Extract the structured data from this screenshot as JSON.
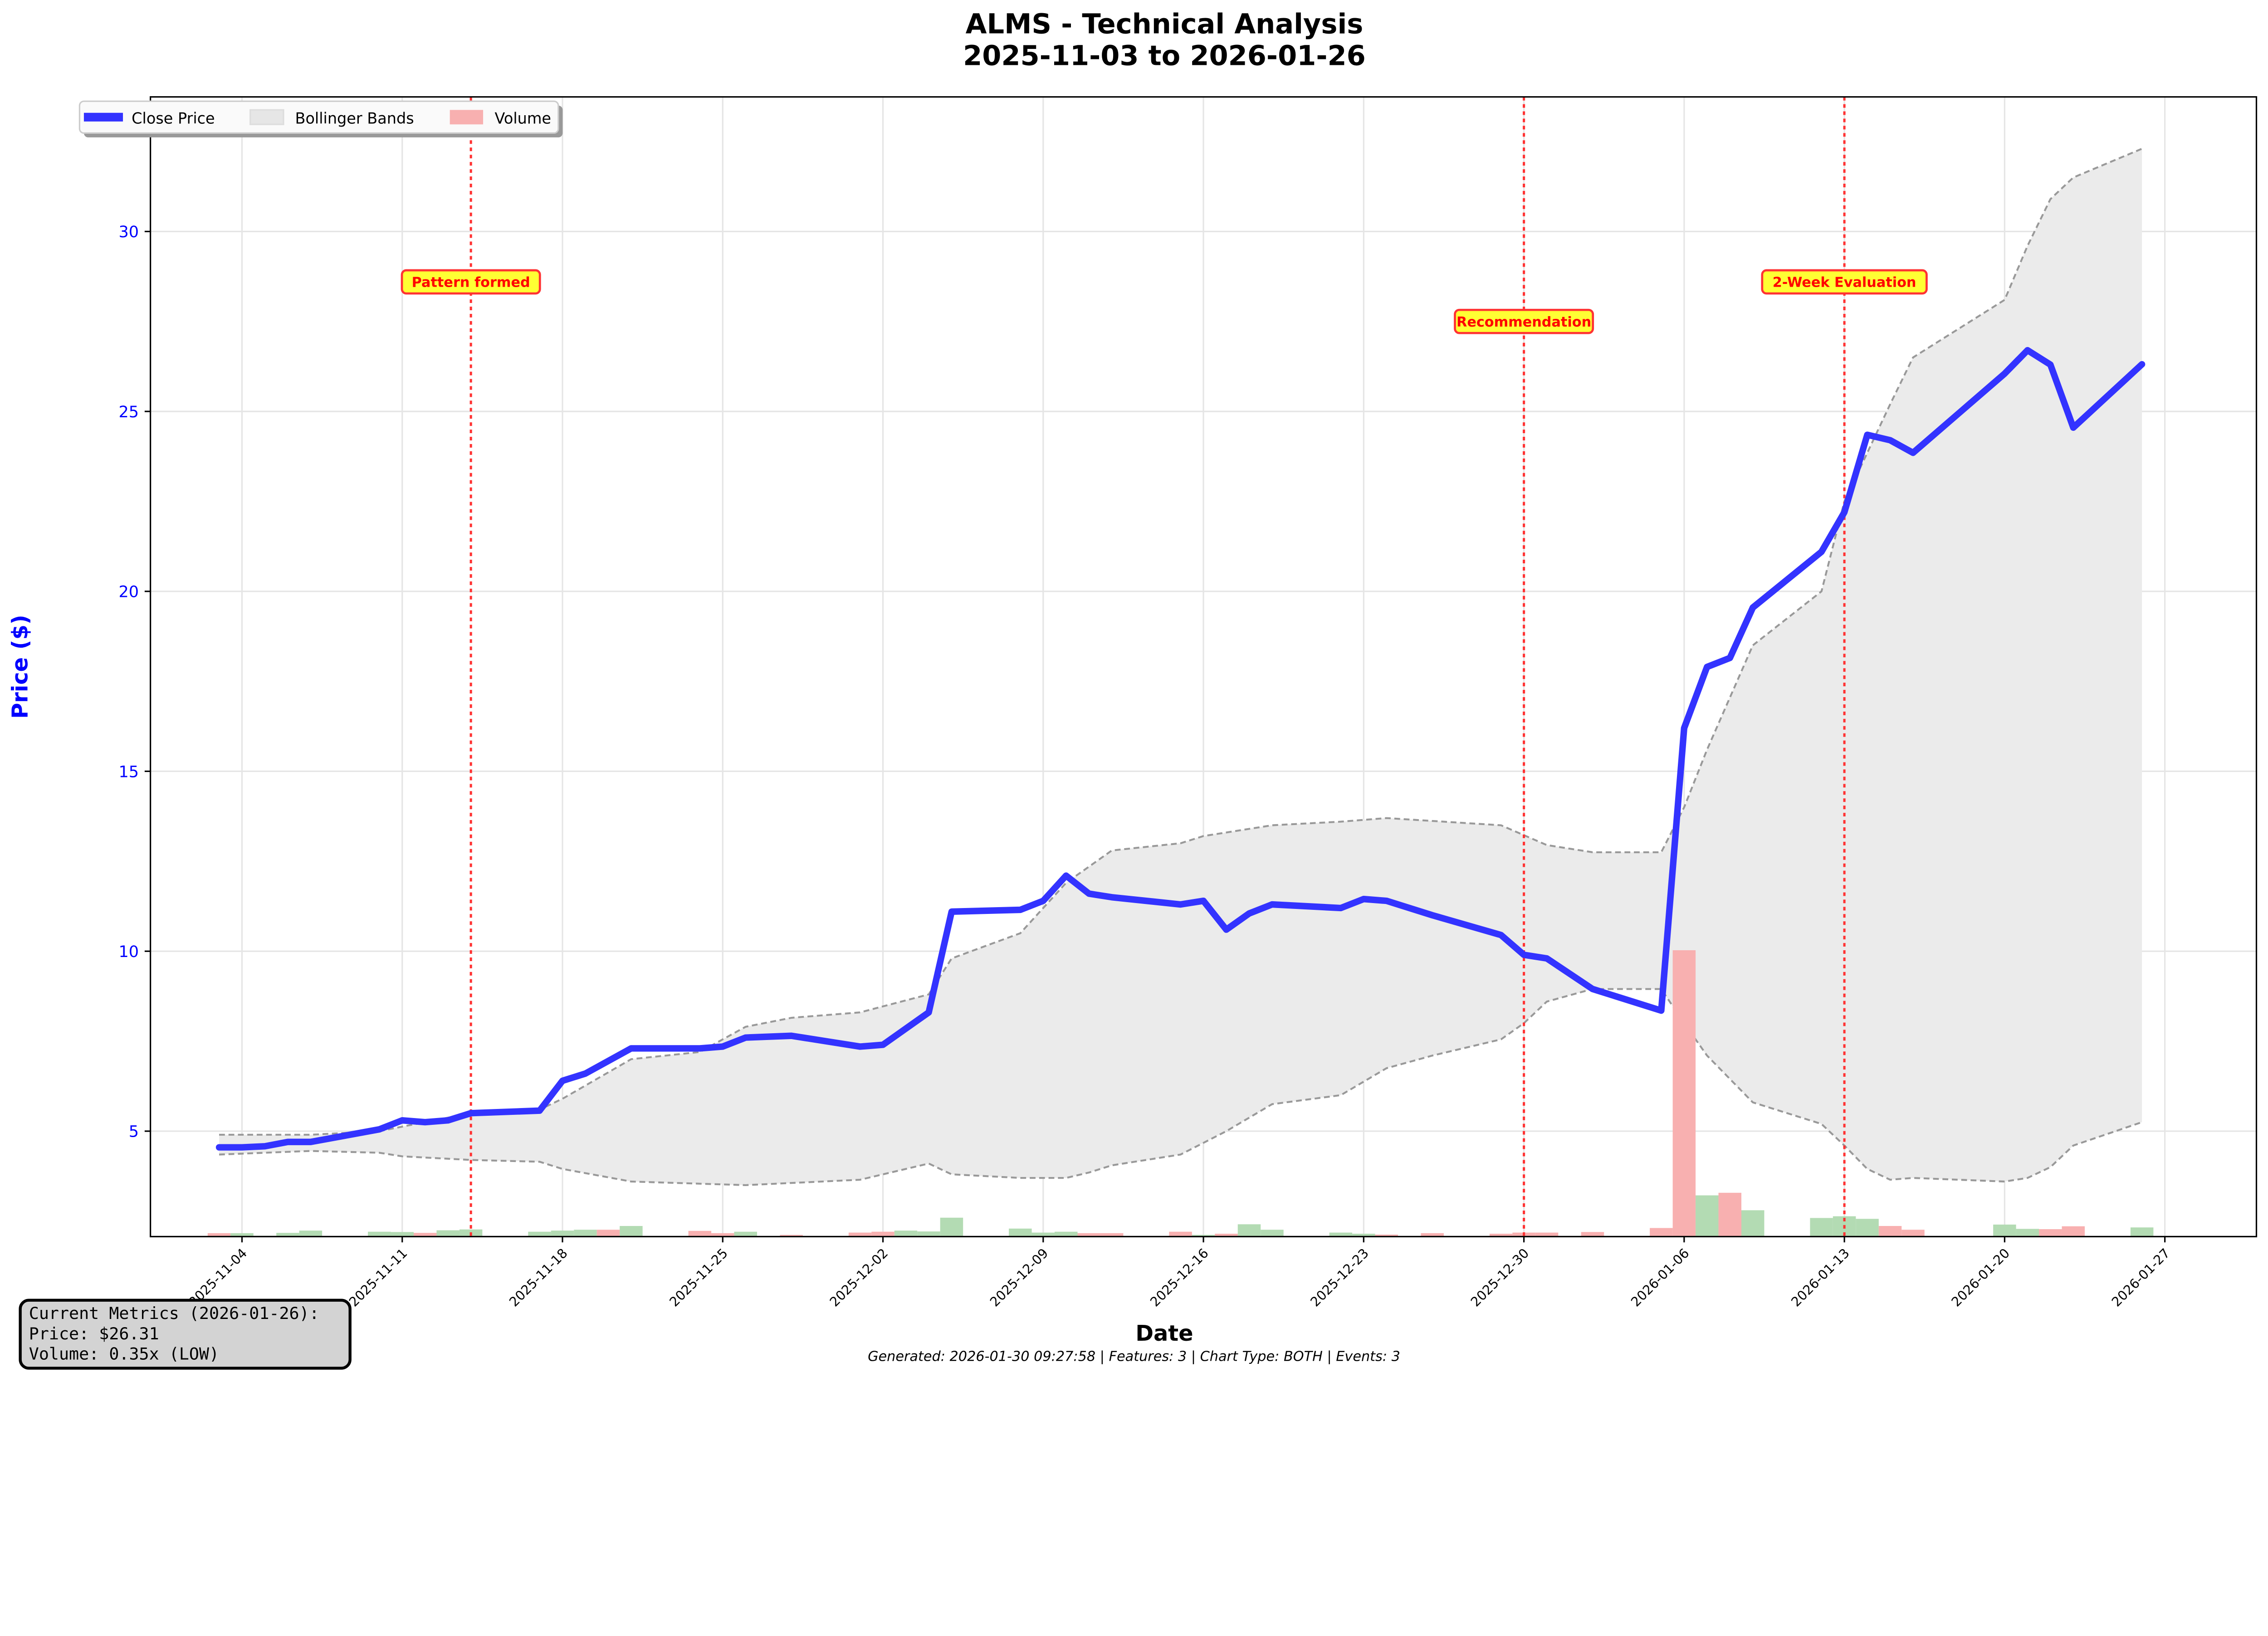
{
  "chart_data": {
    "type": "line",
    "title": "ALMS - Technical Analysis",
    "subtitle": "2025-11-03 to 2026-01-26",
    "xlabel": "Date",
    "ylabel": "Price ($)",
    "ylim": [
      2.07,
      33.74
    ],
    "xlim": [
      "2025-10-31",
      "2026-01-31"
    ],
    "grid": true,
    "legend_position": "top-left",
    "legend": [
      "Close Price",
      "Bollinger Bands",
      "Volume"
    ],
    "x_ticks": [
      "2025-11-04",
      "2025-11-11",
      "2025-11-18",
      "2025-11-25",
      "2025-12-02",
      "2025-12-09",
      "2025-12-16",
      "2025-12-23",
      "2025-12-30",
      "2026-01-06",
      "2026-01-13",
      "2026-01-20",
      "2026-01-27"
    ],
    "y_ticks": [
      5,
      10,
      15,
      20,
      25,
      30
    ],
    "colors": {
      "close": "#3333ff",
      "band_fill": "#ebebeb",
      "band_line": "#999999",
      "volume_up": "#b3dbb3",
      "volume_down": "#f8b0b0",
      "event_line": "#ff3333",
      "event_box": "#ffff33",
      "axis_labels": "#0000ff"
    },
    "close": [
      [
        "2025-11-03",
        4.55
      ],
      [
        "2025-11-04",
        4.55
      ],
      [
        "2025-11-05",
        4.58
      ],
      [
        "2025-11-06",
        4.7
      ],
      [
        "2025-11-07",
        4.7
      ],
      [
        "2025-11-10",
        5.05
      ],
      [
        "2025-11-11",
        5.3
      ],
      [
        "2025-11-12",
        5.25
      ],
      [
        "2025-11-13",
        5.3
      ],
      [
        "2025-11-14",
        5.5
      ],
      [
        "2025-11-17",
        5.57
      ],
      [
        "2025-11-18",
        6.4
      ],
      [
        "2025-11-19",
        6.6
      ],
      [
        "2025-11-21",
        7.3
      ],
      [
        "2025-11-24",
        7.3
      ],
      [
        "2025-11-25",
        7.35
      ],
      [
        "2025-11-26",
        7.6
      ],
      [
        "2025-11-28",
        7.65
      ],
      [
        "2025-12-01",
        7.35
      ],
      [
        "2025-12-02",
        7.4
      ],
      [
        "2025-12-04",
        8.3
      ],
      [
        "2025-12-05",
        11.1
      ],
      [
        "2025-12-08",
        11.15
      ],
      [
        "2025-12-09",
        11.4
      ],
      [
        "2025-12-10",
        12.1
      ],
      [
        "2025-12-11",
        11.6
      ],
      [
        "2025-12-12",
        11.5
      ],
      [
        "2025-12-15",
        11.3
      ],
      [
        "2025-12-16",
        11.4
      ],
      [
        "2025-12-17",
        10.6
      ],
      [
        "2025-12-18",
        11.05
      ],
      [
        "2025-12-19",
        11.3
      ],
      [
        "2025-12-22",
        11.2
      ],
      [
        "2025-12-23",
        11.45
      ],
      [
        "2025-12-24",
        11.4
      ],
      [
        "2025-12-26",
        11.0
      ],
      [
        "2025-12-29",
        10.45
      ],
      [
        "2025-12-30",
        9.9
      ],
      [
        "2025-12-31",
        9.8
      ],
      [
        "2026-01-02",
        8.95
      ],
      [
        "2026-01-05",
        8.35
      ],
      [
        "2026-01-06",
        16.2
      ],
      [
        "2026-01-07",
        17.9
      ],
      [
        "2026-01-08",
        18.15
      ],
      [
        "2026-01-09",
        19.55
      ],
      [
        "2026-01-12",
        21.1
      ],
      [
        "2026-01-13",
        22.2
      ],
      [
        "2026-01-14",
        24.35
      ],
      [
        "2026-01-15",
        24.2
      ],
      [
        "2026-01-16",
        23.85
      ],
      [
        "2026-01-20",
        26.05
      ],
      [
        "2026-01-21",
        26.7
      ],
      [
        "2026-01-22",
        26.3
      ],
      [
        "2026-01-23",
        24.55
      ],
      [
        "2026-01-26",
        26.31
      ]
    ],
    "bollinger_upper": [
      [
        "2025-11-03",
        4.9
      ],
      [
        "2025-11-07",
        4.9
      ],
      [
        "2025-11-10",
        5.0
      ],
      [
        "2025-11-14",
        5.5
      ],
      [
        "2025-11-17",
        5.6
      ],
      [
        "2025-11-18",
        5.9
      ],
      [
        "2025-11-21",
        7.0
      ],
      [
        "2025-11-24",
        7.2
      ],
      [
        "2025-11-26",
        7.9
      ],
      [
        "2025-11-28",
        8.15
      ],
      [
        "2025-12-01",
        8.3
      ],
      [
        "2025-12-04",
        8.8
      ],
      [
        "2025-12-05",
        9.8
      ],
      [
        "2025-12-08",
        10.5
      ],
      [
        "2025-12-10",
        11.9
      ],
      [
        "2025-12-12",
        12.8
      ],
      [
        "2025-12-15",
        13.0
      ],
      [
        "2025-12-16",
        13.2
      ],
      [
        "2025-12-19",
        13.5
      ],
      [
        "2025-12-22",
        13.6
      ],
      [
        "2025-12-24",
        13.7
      ],
      [
        "2025-12-29",
        13.5
      ],
      [
        "2025-12-31",
        12.95
      ],
      [
        "2026-01-02",
        12.75
      ],
      [
        "2026-01-05",
        12.75
      ],
      [
        "2026-01-06",
        14.0
      ],
      [
        "2026-01-07",
        15.6
      ],
      [
        "2026-01-09",
        18.5
      ],
      [
        "2026-01-12",
        20.0
      ],
      [
        "2026-01-13",
        22.5
      ],
      [
        "2026-01-15",
        25.2
      ],
      [
        "2026-01-16",
        26.5
      ],
      [
        "2026-01-20",
        28.1
      ],
      [
        "2026-01-21",
        29.6
      ],
      [
        "2026-01-22",
        30.9
      ],
      [
        "2026-01-23",
        31.5
      ],
      [
        "2026-01-26",
        32.3
      ]
    ],
    "bollinger_lower": [
      [
        "2025-11-03",
        4.35
      ],
      [
        "2025-11-07",
        4.45
      ],
      [
        "2025-11-10",
        4.4
      ],
      [
        "2025-11-11",
        4.3
      ],
      [
        "2025-11-14",
        4.2
      ],
      [
        "2025-11-17",
        4.15
      ],
      [
        "2025-11-18",
        3.95
      ],
      [
        "2025-11-21",
        3.6
      ],
      [
        "2025-11-26",
        3.5
      ],
      [
        "2025-12-01",
        3.65
      ],
      [
        "2025-12-04",
        4.1
      ],
      [
        "2025-12-05",
        3.8
      ],
      [
        "2025-12-08",
        3.7
      ],
      [
        "2025-12-10",
        3.7
      ],
      [
        "2025-12-11",
        3.85
      ],
      [
        "2025-12-12",
        4.05
      ],
      [
        "2025-12-15",
        4.35
      ],
      [
        "2025-12-17",
        5.0
      ],
      [
        "2025-12-19",
        5.75
      ],
      [
        "2025-12-22",
        6.0
      ],
      [
        "2025-12-24",
        6.75
      ],
      [
        "2025-12-26",
        7.1
      ],
      [
        "2025-12-29",
        7.55
      ],
      [
        "2025-12-30",
        8.0
      ],
      [
        "2025-12-31",
        8.6
      ],
      [
        "2026-01-02",
        8.95
      ],
      [
        "2026-01-05",
        8.95
      ],
      [
        "2026-01-06",
        8.0
      ],
      [
        "2026-01-07",
        7.1
      ],
      [
        "2026-01-09",
        5.8
      ],
      [
        "2026-01-12",
        5.2
      ],
      [
        "2026-01-13",
        4.6
      ],
      [
        "2026-01-14",
        3.95
      ],
      [
        "2026-01-15",
        3.65
      ],
      [
        "2026-01-16",
        3.7
      ],
      [
        "2026-01-20",
        3.6
      ],
      [
        "2026-01-21",
        3.7
      ],
      [
        "2026-01-22",
        4.0
      ],
      [
        "2026-01-23",
        4.6
      ],
      [
        "2026-01-26",
        5.25
      ]
    ],
    "volume_relative": [
      [
        "2025-11-03",
        1.2,
        "down"
      ],
      [
        "2025-11-04",
        1.2,
        "up"
      ],
      [
        "2025-11-05",
        0.3,
        "up"
      ],
      [
        "2025-11-06",
        1.3,
        "up"
      ],
      [
        "2025-11-07",
        2.1,
        "up"
      ],
      [
        "2025-11-10",
        1.7,
        "up"
      ],
      [
        "2025-11-11",
        1.6,
        "up"
      ],
      [
        "2025-11-12",
        1.3,
        "down"
      ],
      [
        "2025-11-13",
        2.2,
        "up"
      ],
      [
        "2025-11-14",
        2.5,
        "up"
      ],
      [
        "2025-11-17",
        1.7,
        "up"
      ],
      [
        "2025-11-18",
        2.1,
        "up"
      ],
      [
        "2025-11-19",
        2.4,
        "up"
      ],
      [
        "2025-11-20",
        2.4,
        "down"
      ],
      [
        "2025-11-21",
        3.7,
        "up"
      ],
      [
        "2025-11-24",
        2.0,
        "down"
      ],
      [
        "2025-11-25",
        1.2,
        "down"
      ],
      [
        "2025-11-26",
        1.7,
        "up"
      ],
      [
        "2025-11-28",
        0.6,
        "down"
      ],
      [
        "2025-12-01",
        1.4,
        "down"
      ],
      [
        "2025-12-02",
        1.7,
        "down"
      ],
      [
        "2025-12-03",
        2.1,
        "up"
      ],
      [
        "2025-12-04",
        1.8,
        "up"
      ],
      [
        "2025-12-05",
        6.6,
        "up"
      ],
      [
        "2025-12-08",
        2.8,
        "up"
      ],
      [
        "2025-12-09",
        1.4,
        "up"
      ],
      [
        "2025-12-10",
        1.7,
        "up"
      ],
      [
        "2025-12-11",
        1.2,
        "down"
      ],
      [
        "2025-12-12",
        1.2,
        "down"
      ],
      [
        "2025-12-15",
        1.7,
        "down"
      ],
      [
        "2025-12-16",
        0.6,
        "up"
      ],
      [
        "2025-12-17",
        1.0,
        "down"
      ],
      [
        "2025-12-18",
        4.3,
        "up"
      ],
      [
        "2025-12-19",
        2.4,
        "up"
      ],
      [
        "2025-12-22",
        1.4,
        "up"
      ],
      [
        "2025-12-23",
        1.0,
        "up"
      ],
      [
        "2025-12-24",
        0.7,
        "down"
      ],
      [
        "2025-12-26",
        1.2,
        "down"
      ],
      [
        "2025-12-29",
        1.0,
        "down"
      ],
      [
        "2025-12-30",
        1.4,
        "down"
      ],
      [
        "2025-12-31",
        1.4,
        "down"
      ],
      [
        "2026-01-02",
        1.6,
        "down"
      ],
      [
        "2026-01-05",
        3.0,
        "down"
      ],
      [
        "2026-01-06",
        100,
        "down"
      ],
      [
        "2026-01-07",
        14.4,
        "up"
      ],
      [
        "2026-01-08",
        15.3,
        "down"
      ],
      [
        "2026-01-09",
        9.2,
        "up"
      ],
      [
        "2026-01-12",
        6.5,
        "up"
      ],
      [
        "2026-01-13",
        7.1,
        "up"
      ],
      [
        "2026-01-14",
        6.2,
        "up"
      ],
      [
        "2026-01-15",
        3.7,
        "down"
      ],
      [
        "2026-01-16",
        2.4,
        "down"
      ],
      [
        "2026-01-20",
        4.2,
        "up"
      ],
      [
        "2026-01-21",
        2.7,
        "up"
      ],
      [
        "2026-01-22",
        2.6,
        "down"
      ],
      [
        "2026-01-23",
        3.6,
        "down"
      ],
      [
        "2026-01-26",
        3.2,
        "up"
      ]
    ],
    "events": [
      {
        "date": "2025-11-14",
        "label": "Pattern formed",
        "label_price": 28.6
      },
      {
        "date": "2025-12-30",
        "label": "Recommendation",
        "label_price": 27.5
      },
      {
        "date": "2026-01-13",
        "label": "2-Week Evaluation",
        "label_price": 28.6
      }
    ]
  },
  "metrics_box": {
    "line1": "Current Metrics (2026-01-26):",
    "line2": "Price: $26.31",
    "line3": "Volume: 0.35x (LOW)"
  },
  "footer": "Generated: 2026-01-30 09:27:58 | Features: 3 | Chart Type: BOTH | Events: 3"
}
